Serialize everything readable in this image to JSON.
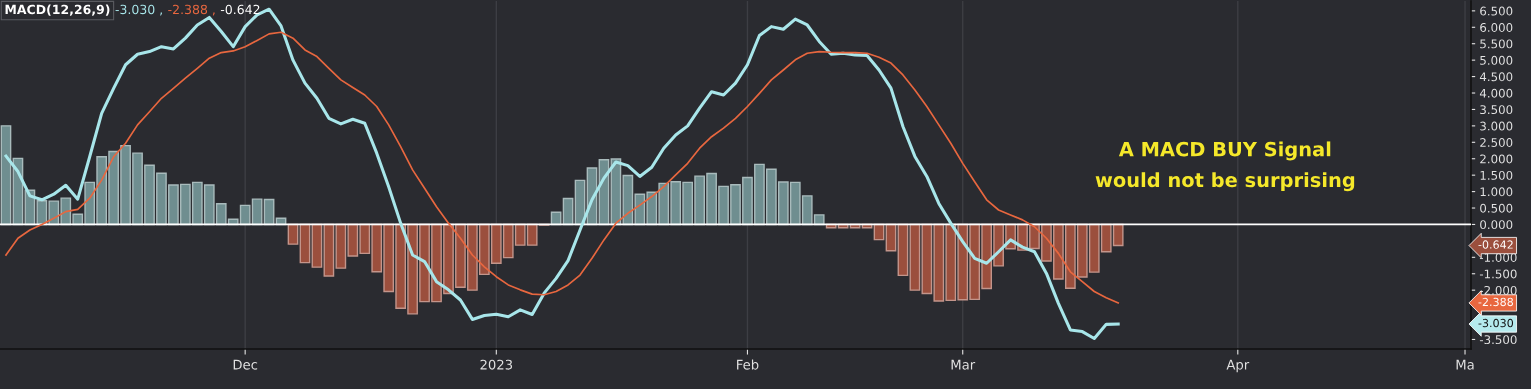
{
  "chart_data": {
    "type": "bar",
    "title": "MACD(12,26,9)",
    "categories": [
      null,
      null,
      null,
      null,
      null,
      null,
      null,
      null,
      null,
      null,
      null,
      null,
      null,
      null,
      null,
      null,
      null,
      null,
      null,
      null,
      "Dec",
      null,
      null,
      null,
      null,
      null,
      null,
      null,
      null,
      null,
      null,
      null,
      null,
      null,
      null,
      null,
      null,
      null,
      null,
      null,
      null,
      "2023",
      null,
      null,
      null,
      null,
      null,
      null,
      null,
      null,
      null,
      null,
      null,
      null,
      null,
      null,
      null,
      null,
      null,
      null,
      null,
      null,
      "Feb",
      null,
      null,
      null,
      null,
      null,
      null,
      null,
      null,
      null,
      null,
      null,
      null,
      null,
      null,
      null,
      null,
      null,
      "Mar",
      null,
      null,
      null,
      null,
      null,
      null,
      null,
      null,
      null,
      null,
      null,
      null,
      null,
      null,
      null,
      null,
      null,
      null,
      null,
      null,
      null,
      null,
      "Apr",
      null,
      null,
      null,
      null,
      null,
      null,
      null,
      null,
      null,
      null,
      null,
      null,
      null,
      null,
      null,
      null,
      null,
      null,
      "Ma"
    ],
    "series": [
      {
        "values": [
          3.0,
          2.01,
          1.04,
          0.72,
          0.71,
          0.8,
          0.31,
          1.28,
          2.06,
          2.22,
          2.4,
          2.17,
          1.8,
          1.56,
          1.2,
          1.22,
          1.28,
          1.2,
          0.63,
          0.16,
          0.58,
          0.77,
          0.76,
          0.19,
          -0.6,
          -1.16,
          -1.3,
          -1.57,
          -1.33,
          -0.96,
          -0.88,
          -1.44,
          -2.04,
          -2.55,
          -2.72,
          -2.35,
          -2.35,
          -2.1,
          -1.91,
          -2.0,
          -1.52,
          -1.18,
          -1.01,
          -0.63,
          -0.63,
          -0.02,
          0.37,
          0.79,
          1.34,
          1.72,
          1.97,
          1.99,
          1.49,
          0.92,
          0.98,
          1.25,
          1.3,
          1.28,
          1.47,
          1.55,
          1.16,
          1.21,
          1.43,
          1.83,
          1.68,
          1.29,
          1.28,
          0.87,
          0.29,
          -0.1,
          -0.1,
          -0.1,
          -0.1,
          -0.46,
          -0.8,
          -1.55,
          -2.0,
          -2.1,
          -2.33,
          -2.31,
          -2.29,
          -2.28,
          -1.95,
          -1.26,
          -0.74,
          -0.78,
          -0.73,
          -1.11,
          -1.66,
          -1.94,
          -1.6,
          -1.45,
          -0.83,
          -0.642,
          null,
          null,
          null,
          null,
          null,
          null,
          null,
          null,
          null,
          null,
          null,
          null,
          null,
          null,
          null,
          null,
          null,
          null,
          null,
          null,
          null,
          null,
          null,
          null,
          null,
          null,
          null,
          null,
          null
        ],
        "colors": [
          "#6f8e90",
          "#6f8e90",
          "#6f8e90",
          "#6f8e90",
          "#6f8e90",
          "#6f8e90",
          "#6f8e90",
          "#6f8e90",
          "#6f8e90",
          "#6f8e90",
          "#6f8e90",
          "#6f8e90",
          "#6f8e90",
          "#6f8e90",
          "#6f8e90",
          "#6f8e90",
          "#6f8e90",
          "#6f8e90",
          "#6f8e90",
          "#6f8e90",
          "#6f8e90",
          "#6f8e90",
          "#6f8e90",
          "#6f8e90",
          "#9b4f3d",
          "#9b4f3d",
          "#9b4f3d",
          "#9b4f3d",
          "#9b4f3d",
          "#9b4f3d",
          "#9b4f3d",
          "#9b4f3d",
          "#9b4f3d",
          "#9b4f3d",
          "#9b4f3d",
          "#9b4f3d",
          "#9b4f3d",
          "#9b4f3d",
          "#9b4f3d",
          "#9b4f3d",
          "#9b4f3d",
          "#9b4f3d",
          "#9b4f3d",
          "#9b4f3d",
          "#9b4f3d",
          "#9b4f3d",
          "#6f8e90",
          "#6f8e90",
          "#6f8e90",
          "#6f8e90",
          "#6f8e90",
          "#6f8e90",
          "#6f8e90",
          "#6f8e90",
          "#6f8e90",
          "#6f8e90",
          "#6f8e90",
          "#6f8e90",
          "#6f8e90",
          "#6f8e90",
          "#6f8e90",
          "#6f8e90",
          "#6f8e90",
          "#6f8e90",
          "#6f8e90",
          "#6f8e90",
          "#6f8e90",
          "#6f8e90",
          "#6f8e90",
          "#9b4f3d",
          "#9b4f3d",
          "#9b4f3d",
          "#9b4f3d",
          "#9b4f3d",
          "#9b4f3d",
          "#9b4f3d",
          "#9b4f3d",
          "#9b4f3d",
          "#9b4f3d",
          "#9b4f3d",
          "#9b4f3d",
          "#9b4f3d",
          "#9b4f3d",
          "#9b4f3d",
          "#9b4f3d",
          "#9b4f3d",
          "#9b4f3d",
          "#9b4f3d",
          "#9b4f3d",
          "#9b4f3d",
          "#9b4f3d",
          "#9b4f3d",
          "#9b4f3d",
          "#9b4f3d",
          null,
          null,
          null,
          null,
          null,
          null,
          null,
          null,
          null,
          null,
          null,
          null,
          null,
          null,
          null,
          null,
          null,
          null,
          null,
          null,
          null,
          null,
          null,
          null,
          null,
          null,
          null,
          null,
          null
        ]
      },
      {
        "type": "line",
        "color": "#a8e6ea",
        "values": [
          2.08,
          1.61,
          0.87,
          0.75,
          0.92,
          1.19,
          0.77,
          2.06,
          3.38,
          4.14,
          4.86,
          5.18,
          5.26,
          5.41,
          5.34,
          5.67,
          6.07,
          6.3,
          5.87,
          5.41,
          6.02,
          6.38,
          6.55,
          6.04,
          5.0,
          4.3,
          3.84,
          3.23,
          3.06,
          3.2,
          3.08,
          2.17,
          1.15,
          0.04,
          -0.93,
          -1.13,
          -1.74,
          -1.99,
          -2.3,
          -2.89,
          -2.77,
          -2.73,
          -2.81,
          -2.6,
          -2.74,
          -2.09,
          -1.64,
          -1.1,
          -0.17,
          0.75,
          1.41,
          1.9,
          1.79,
          1.46,
          1.74,
          2.32,
          2.72,
          3.0,
          3.54,
          4.04,
          3.94,
          4.3,
          4.86,
          5.75,
          6.02,
          5.94,
          6.25,
          6.07,
          5.57,
          5.18,
          5.21,
          5.16,
          5.14,
          4.7,
          4.15,
          2.98,
          2.07,
          1.46,
          0.64,
          0.04,
          -0.52,
          -1.03,
          -1.18,
          -0.83,
          -0.47,
          -0.69,
          -0.83,
          -1.49,
          -2.4,
          -3.21,
          -3.26,
          -3.47,
          -3.04,
          -3.03,
          null,
          null,
          null,
          null,
          null,
          null,
          null,
          null,
          null,
          null,
          null,
          null,
          null,
          null,
          null,
          null,
          null,
          null,
          null,
          null,
          null,
          null,
          null,
          null,
          null,
          null,
          null,
          null,
          null
        ]
      },
      {
        "type": "line",
        "color": "#e8673f",
        "values": [
          -0.93,
          -0.42,
          -0.17,
          0.0,
          0.19,
          0.39,
          0.46,
          0.8,
          1.35,
          2.06,
          2.47,
          3.03,
          3.43,
          3.84,
          4.14,
          4.45,
          4.75,
          5.06,
          5.23,
          5.28,
          5.41,
          5.6,
          5.8,
          5.85,
          5.67,
          5.31,
          5.11,
          4.75,
          4.4,
          4.17,
          3.94,
          3.59,
          3.03,
          2.37,
          1.66,
          1.1,
          0.54,
          0.04,
          -0.42,
          -0.93,
          -1.29,
          -1.59,
          -1.84,
          -1.99,
          -2.12,
          -2.14,
          -2.04,
          -1.84,
          -1.54,
          -1.03,
          -0.47,
          0.04,
          0.34,
          0.59,
          0.85,
          1.15,
          1.51,
          1.86,
          2.32,
          2.67,
          2.93,
          3.23,
          3.59,
          3.99,
          4.4,
          4.7,
          5.01,
          5.21,
          5.26,
          5.24,
          5.23,
          5.23,
          5.21,
          5.09,
          4.91,
          4.55,
          4.09,
          3.59,
          3.03,
          2.47,
          1.86,
          1.3,
          0.75,
          0.44,
          0.29,
          0.14,
          -0.07,
          -0.42,
          -0.88,
          -1.44,
          -1.74,
          -2.04,
          -2.23,
          -2.388,
          null,
          null,
          null,
          null,
          null,
          null,
          null,
          null,
          null,
          null,
          null,
          null,
          null,
          null,
          null,
          null,
          null,
          null,
          null,
          null,
          null,
          null,
          null,
          null,
          null,
          null,
          null,
          null,
          null
        ]
      }
    ],
    "ylim": [
      -3.79,
      6.8
    ],
    "yticks": [
      {
        "value": 6.5,
        "label": "6.500"
      },
      {
        "value": 6.0,
        "label": "6.000"
      },
      {
        "value": 5.5,
        "label": "5.500"
      },
      {
        "value": 5.0,
        "label": "5.000"
      },
      {
        "value": 4.5,
        "label": "4.500"
      },
      {
        "value": 4.0,
        "label": "4.000"
      },
      {
        "value": 3.5,
        "label": "3.500"
      },
      {
        "value": 3.0,
        "label": "3.000"
      },
      {
        "value": 2.5,
        "label": "2.500"
      },
      {
        "value": 2.0,
        "label": "2.000"
      },
      {
        "value": 1.5,
        "label": "1.500"
      },
      {
        "value": 1.0,
        "label": "1.000"
      },
      {
        "value": 0.5,
        "label": "0.500"
      },
      {
        "value": 0.0,
        "label": "0.000"
      },
      {
        "value": -1.0,
        "label": "-1.000"
      },
      {
        "value": -1.5,
        "label": "-1.500"
      },
      {
        "value": -2.0,
        "label": "-2.000"
      },
      {
        "value": -3.5,
        "label": "-3.500"
      }
    ],
    "grid": "x",
    "ref_lines": [
      {
        "axis": "y",
        "value": 0,
        "color": "#ffffff"
      }
    ],
    "annotations": [
      "-3.030 ,",
      "-2.388 ,",
      "-0.642",
      "-3.030",
      "-2.388",
      "-0.642",
      "A MACD BUY Signal\nwould not be surprising"
    ]
  }
}
